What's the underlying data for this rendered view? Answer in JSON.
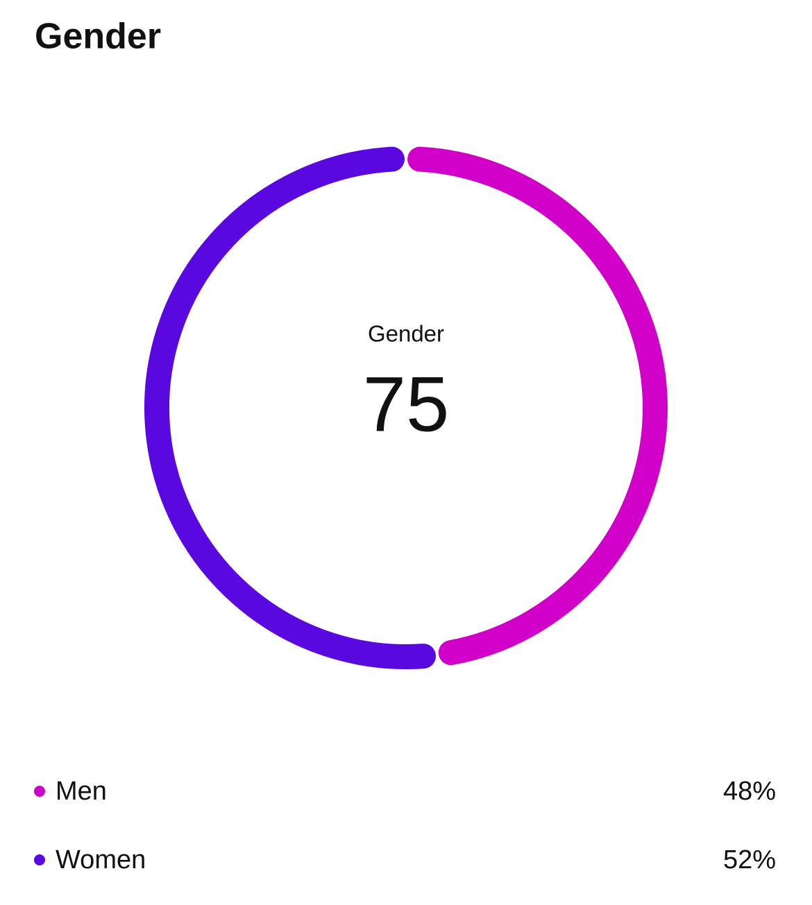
{
  "chart_data": {
    "type": "donut",
    "title": "Gender",
    "center_label": "Gender",
    "center_value": 75,
    "categories": [
      "Men",
      "Women"
    ],
    "values": [
      48,
      52
    ],
    "value_labels": [
      "48%",
      "52%"
    ],
    "colors": [
      "#d000c8",
      "#5a08e0"
    ]
  }
}
